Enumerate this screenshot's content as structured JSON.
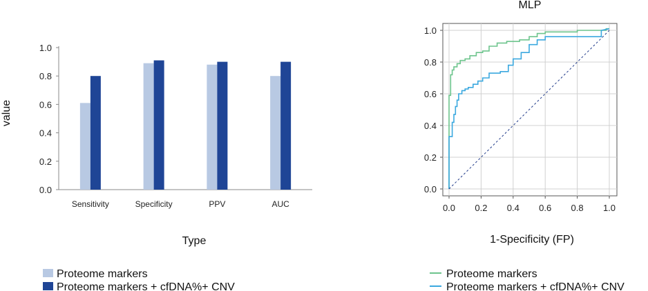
{
  "chart_data": [
    {
      "type": "bar",
      "title": "",
      "xlabel": "Type",
      "ylabel": "value",
      "ylim": [
        0,
        1.0
      ],
      "yticks": [
        "0.0",
        "0.2",
        "0.4",
        "0.6",
        "0.8",
        "1.0"
      ],
      "categories": [
        "Sensitivity",
        "Specificity",
        "PPV",
        "AUC"
      ],
      "series": [
        {
          "name": "Proteome markers",
          "color": "#b8c9e3",
          "values": [
            0.61,
            0.89,
            0.88,
            0.8
          ]
        },
        {
          "name": "Proteome markers + cfDNA%+ CNV",
          "color": "#1f4596",
          "values": [
            0.8,
            0.91,
            0.9,
            0.9
          ]
        }
      ],
      "grid": false,
      "legend_position": "bottom-left"
    },
    {
      "type": "line",
      "title": "MLP",
      "xlabel": "1-Specificity (FP)",
      "ylabel": "",
      "xlim": [
        0,
        1.0
      ],
      "ylim": [
        0,
        1.0
      ],
      "xticks": [
        "0.0",
        "0.2",
        "0.4",
        "0.6",
        "0.8",
        "1.0"
      ],
      "yticks": [
        "0.0",
        "0.2",
        "0.4",
        "0.6",
        "0.8",
        "1.0"
      ],
      "grid": true,
      "legend_position": "bottom-right",
      "series": [
        {
          "name": "Proteome markers",
          "color": "#6cc48c",
          "x": [
            0,
            0,
            0.01,
            0.01,
            0.02,
            0.02,
            0.03,
            0.03,
            0.05,
            0.05,
            0.07,
            0.07,
            0.1,
            0.1,
            0.13,
            0.13,
            0.17,
            0.17,
            0.21,
            0.21,
            0.25,
            0.25,
            0.3,
            0.3,
            0.36,
            0.36,
            0.44,
            0.44,
            0.5,
            0.5,
            0.55,
            0.55,
            0.6,
            0.6,
            0.8,
            0.8,
            0.98,
            0.98,
            1.0
          ],
          "y": [
            0,
            0.59,
            0.59,
            0.72,
            0.72,
            0.75,
            0.75,
            0.77,
            0.77,
            0.79,
            0.79,
            0.81,
            0.81,
            0.82,
            0.82,
            0.84,
            0.84,
            0.86,
            0.86,
            0.87,
            0.87,
            0.9,
            0.9,
            0.92,
            0.92,
            0.93,
            0.93,
            0.94,
            0.94,
            0.96,
            0.96,
            0.98,
            0.98,
            0.99,
            0.99,
            1.0,
            1.0,
            1.01,
            1.01
          ]
        },
        {
          "name": "Proteome markers + cfDNA%+ CNV",
          "color": "#3aa8df",
          "x": [
            0,
            0,
            0.02,
            0.02,
            0.03,
            0.03,
            0.04,
            0.04,
            0.05,
            0.05,
            0.06,
            0.06,
            0.08,
            0.08,
            0.1,
            0.1,
            0.12,
            0.12,
            0.15,
            0.15,
            0.18,
            0.18,
            0.21,
            0.21,
            0.25,
            0.25,
            0.32,
            0.32,
            0.37,
            0.37,
            0.4,
            0.4,
            0.45,
            0.45,
            0.5,
            0.5,
            0.55,
            0.55,
            0.6,
            0.6,
            0.95,
            0.95,
            1.0
          ],
          "y": [
            0,
            0.33,
            0.33,
            0.42,
            0.42,
            0.47,
            0.47,
            0.52,
            0.52,
            0.56,
            0.56,
            0.6,
            0.6,
            0.62,
            0.62,
            0.63,
            0.63,
            0.64,
            0.64,
            0.66,
            0.66,
            0.68,
            0.68,
            0.7,
            0.7,
            0.73,
            0.73,
            0.74,
            0.74,
            0.78,
            0.78,
            0.82,
            0.82,
            0.86,
            0.86,
            0.91,
            0.91,
            0.94,
            0.94,
            0.96,
            0.96,
            1.0,
            1.01
          ]
        },
        {
          "name": "",
          "color": "#1f3a8a",
          "style": "dashed",
          "x": [
            0,
            1.0
          ],
          "y": [
            0,
            1.0
          ]
        }
      ]
    }
  ],
  "legends": [
    {
      "items": [
        {
          "label": "Proteome markers",
          "color": "#b8c9e3",
          "shape": "square"
        },
        {
          "label": "Proteome markers + cfDNA%+ CNV",
          "color": "#1f4596",
          "shape": "square"
        }
      ]
    },
    {
      "items": [
        {
          "label": "Proteome markers",
          "color": "#6cc48c",
          "shape": "line"
        },
        {
          "label": "Proteome markers + cfDNA%+ CNV",
          "color": "#3aa8df",
          "shape": "line"
        }
      ]
    }
  ]
}
